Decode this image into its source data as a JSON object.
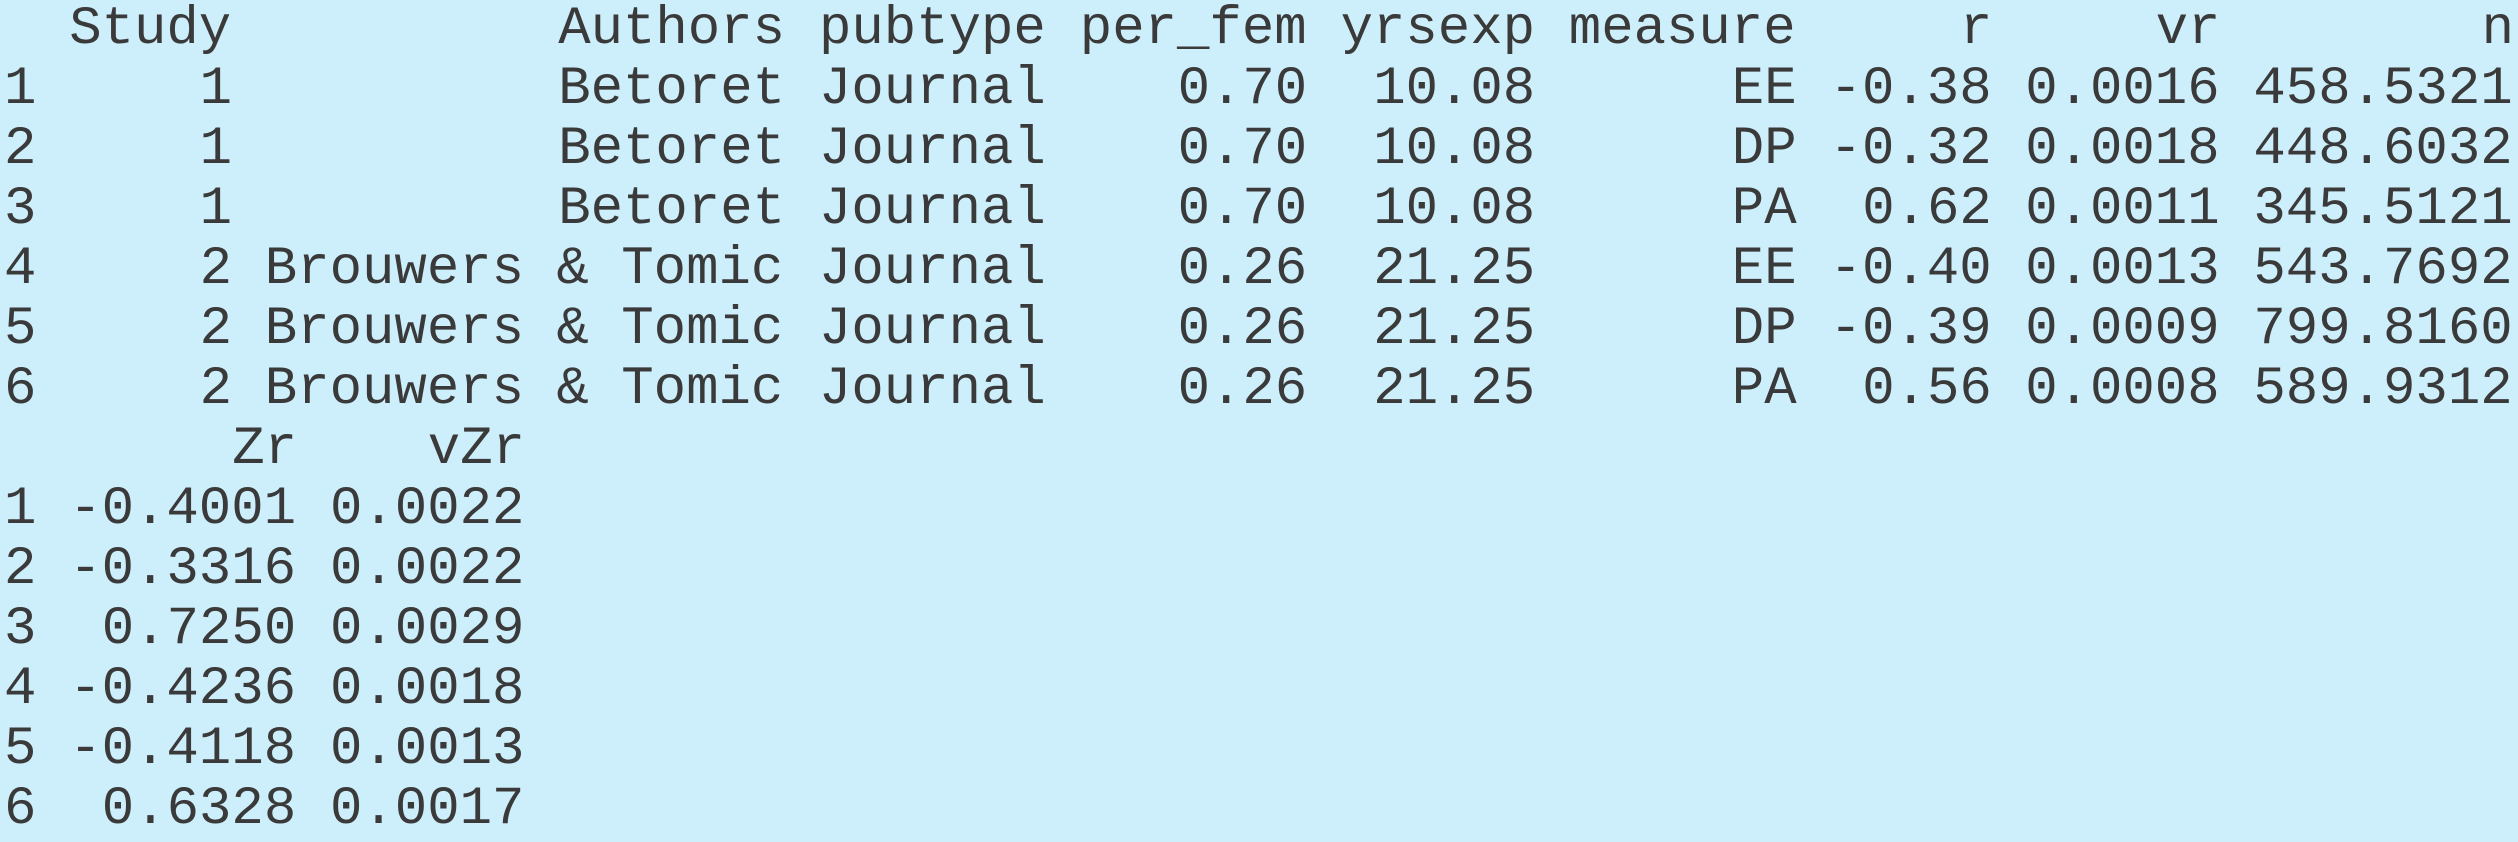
{
  "blocks": [
    {
      "header": [
        "Study",
        "Authors",
        "pubtype",
        "per_fem",
        "yrsexp",
        "measure",
        "r",
        "vr",
        "n"
      ],
      "rownames": [
        "1",
        "2",
        "3",
        "4",
        "5",
        "6"
      ],
      "rows": [
        [
          "1",
          "Betoret",
          "Journal",
          "0.70",
          "10.08",
          "EE",
          "-0.38",
          "0.0016",
          "458.5321"
        ],
        [
          "1",
          "Betoret",
          "Journal",
          "0.70",
          "10.08",
          "DP",
          "-0.32",
          "0.0018",
          "448.6032"
        ],
        [
          "1",
          "Betoret",
          "Journal",
          "0.70",
          "10.08",
          "PA",
          "0.62",
          "0.0011",
          "345.5121"
        ],
        [
          "2",
          "Brouwers & Tomic",
          "Journal",
          "0.26",
          "21.25",
          "EE",
          "-0.40",
          "0.0013",
          "543.7692"
        ],
        [
          "2",
          "Brouwers & Tomic",
          "Journal",
          "0.26",
          "21.25",
          "DP",
          "-0.39",
          "0.0009",
          "799.8160"
        ],
        [
          "2",
          "Brouwers & Tomic",
          "Journal",
          "0.26",
          "21.25",
          "PA",
          "0.56",
          "0.0008",
          "589.9312"
        ]
      ]
    },
    {
      "header": [
        "Zr",
        "vZr"
      ],
      "rownames": [
        "1",
        "2",
        "3",
        "4",
        "5",
        "6"
      ],
      "rows": [
        [
          "-0.4001",
          "0.0022"
        ],
        [
          "-0.3316",
          "0.0022"
        ],
        [
          "0.7250",
          "0.0029"
        ],
        [
          "-0.4236",
          "0.0018"
        ],
        [
          "-0.4118",
          "0.0013"
        ],
        [
          "0.6328",
          "0.0017"
        ]
      ]
    }
  ]
}
